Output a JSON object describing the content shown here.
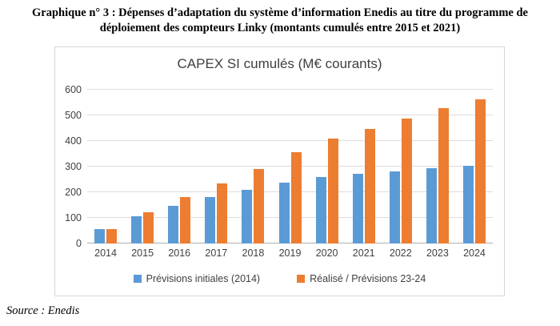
{
  "figure": {
    "caption": "Graphique n° 3 : Dépenses d’adaptation du système d’information Enedis au titre du programme de déploiement des compteurs Linky (montants cumulés entre 2015 et 2021)"
  },
  "chart_data": {
    "type": "bar",
    "title": "CAPEX SI cumulés (M€ courants)",
    "categories": [
      "2014",
      "2015",
      "2016",
      "2017",
      "2018",
      "2019",
      "2020",
      "2021",
      "2022",
      "2023",
      "2024"
    ],
    "series": [
      {
        "name": "Prévisions initiales (2014)",
        "color": "#5B9BD5",
        "values": [
          57,
          105,
          147,
          181,
          209,
          236,
          259,
          272,
          282,
          294,
          303
        ]
      },
      {
        "name": "Réalisé / Prévisions 23-24",
        "color": "#ED7D31",
        "values": [
          57,
          122,
          181,
          234,
          291,
          357,
          408,
          448,
          487,
          529,
          562
        ]
      }
    ],
    "xlabel": "",
    "ylabel": "",
    "ylim": [
      0,
      600
    ],
    "yticks": [
      0,
      100,
      200,
      300,
      400,
      500,
      600
    ],
    "grid": true,
    "legend_position": "bottom"
  },
  "source": {
    "text": "Source : Enedis"
  }
}
